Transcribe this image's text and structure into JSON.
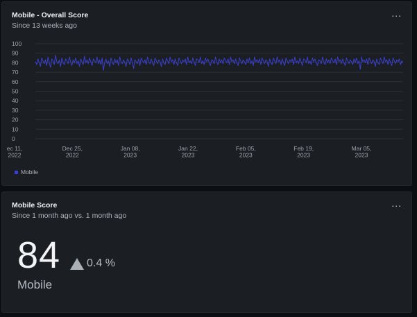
{
  "overall_widget": {
    "title": "Mobile - Overall Score",
    "subtitle": "Since 13 weeks ago",
    "menu_icon": "more-horizontal-icon",
    "menu_label": "...",
    "legend_label": "Mobile"
  },
  "chart_data": {
    "type": "line",
    "title": "Mobile - Overall Score",
    "xlabel": "",
    "ylabel": "",
    "ylim": [
      0,
      100
    ],
    "yticks": [
      0,
      10,
      20,
      30,
      40,
      50,
      60,
      70,
      80,
      90,
      100
    ],
    "xticks": [
      {
        "date": "2022-12-11",
        "line1": "ec 11,",
        "line2": "2022"
      },
      {
        "date": "2022-12-25",
        "line1": "Dec 25,",
        "line2": "2022"
      },
      {
        "date": "2023-01-08",
        "line1": "Jan 08,",
        "line2": "2023"
      },
      {
        "date": "2023-01-22",
        "line1": "Jan 22,",
        "line2": "2023"
      },
      {
        "date": "2023-02-05",
        "line1": "Feb 05,",
        "line2": "2023"
      },
      {
        "date": "2023-02-19",
        "line1": "Feb 19,",
        "line2": "2023"
      },
      {
        "date": "2023-03-05",
        "line1": "Mar 05,",
        "line2": "2023"
      }
    ],
    "grid": true,
    "legend": "bottom-left",
    "series": [
      {
        "name": "Mobile",
        "color": "#3b3fd1",
        "values": [
          81,
          78,
          84,
          80,
          76,
          85,
          82,
          79,
          83,
          77,
          86,
          80,
          75,
          84,
          82,
          78,
          88,
          81,
          79,
          83,
          76,
          85,
          80,
          78,
          84,
          82,
          79,
          86,
          81,
          77,
          83,
          80,
          85,
          79,
          82,
          76,
          84,
          81,
          78,
          87,
          80,
          83,
          79,
          85,
          81,
          77,
          84,
          82,
          80,
          86,
          79,
          83,
          78,
          85,
          72,
          80,
          84,
          79,
          82,
          76,
          85,
          81,
          78,
          84,
          80,
          83,
          77,
          86,
          81,
          79,
          83,
          80,
          76,
          84,
          82,
          78,
          85,
          80,
          74,
          83,
          81,
          79,
          84,
          77,
          85,
          82,
          80,
          83,
          78,
          86,
          81,
          79,
          84,
          80,
          77,
          85,
          82,
          79,
          83,
          81,
          76,
          84,
          80,
          78,
          85,
          82,
          79,
          86,
          81,
          83,
          78,
          84,
          80,
          77,
          85,
          82,
          79,
          83,
          81,
          84,
          78,
          86,
          80,
          82,
          79,
          85,
          81,
          77,
          84,
          83,
          80,
          86,
          79,
          82,
          78,
          85,
          81,
          84,
          80,
          77,
          83,
          82,
          79,
          86,
          81,
          78,
          84,
          80,
          83,
          79,
          85,
          82,
          80,
          84,
          78,
          86,
          81,
          83,
          79,
          84,
          80,
          77,
          85,
          82,
          79,
          83,
          81,
          78,
          84,
          80,
          85,
          79,
          82,
          77,
          86,
          81,
          83,
          80,
          84,
          78,
          85,
          82,
          79,
          83,
          81,
          76,
          84,
          80,
          78,
          85,
          82,
          79,
          86,
          81,
          83,
          78,
          84,
          80,
          77,
          85,
          82,
          79,
          83,
          81,
          84,
          78,
          86,
          80,
          82,
          79,
          85,
          81,
          77,
          84,
          83,
          80,
          86,
          79,
          82,
          78,
          85,
          81,
          84,
          80,
          77,
          83,
          82,
          79,
          86,
          81,
          78,
          84,
          80,
          83,
          79,
          85,
          82,
          80,
          84,
          78,
          86,
          81,
          83,
          79,
          84,
          80,
          77,
          85,
          82,
          79,
          83,
          81,
          78,
          84,
          80,
          85,
          79,
          82,
          73,
          86,
          81,
          83,
          80,
          84,
          78,
          85,
          82,
          79,
          83,
          81,
          76,
          84,
          80,
          78,
          85,
          82,
          79,
          86,
          81,
          83,
          78,
          84,
          80,
          77,
          85,
          82,
          79,
          83,
          81,
          84,
          78,
          82,
          80
        ]
      }
    ]
  },
  "score_widget": {
    "title": "Mobile Score",
    "subtitle": "Since 1 month ago vs. 1 month ago",
    "menu_icon": "more-horizontal-icon",
    "menu_label": "...",
    "value": "84",
    "change_icon": "triangle-up-icon",
    "change": "0.4 %",
    "metric_name": "Mobile"
  }
}
